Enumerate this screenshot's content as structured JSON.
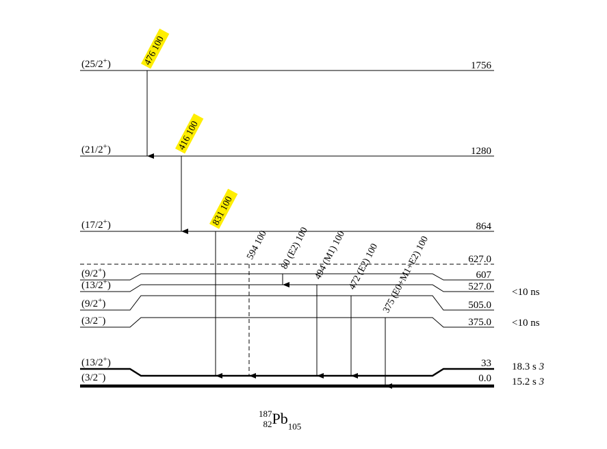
{
  "nucleus": {
    "mass": "187",
    "z": "82",
    "symbol": "Pb",
    "n": "105"
  },
  "levels": [
    {
      "id": "L1756",
      "spin": "(25/2+)",
      "energy": "1756",
      "halflife": "",
      "halflife_unc": ""
    },
    {
      "id": "L1280",
      "spin": "(21/2+)",
      "energy": "1280",
      "halflife": "",
      "halflife_unc": ""
    },
    {
      "id": "L864",
      "spin": "(17/2+)",
      "energy": "864",
      "halflife": "",
      "halflife_unc": ""
    },
    {
      "id": "L627",
      "spin": "",
      "energy": "627.0",
      "halflife": "",
      "halflife_unc": ""
    },
    {
      "id": "L607",
      "spin": "(9/2+)",
      "energy": "607",
      "halflife": "",
      "halflife_unc": ""
    },
    {
      "id": "L527",
      "spin": "(13/2+)",
      "energy": "527.0",
      "halflife": "<10 ns",
      "halflife_unc": ""
    },
    {
      "id": "L505",
      "spin": "(9/2+)",
      "energy": "505.0",
      "halflife": "",
      "halflife_unc": ""
    },
    {
      "id": "L375",
      "spin": "(3/2−)",
      "energy": "375.0",
      "halflife": "<10 ns",
      "halflife_unc": ""
    },
    {
      "id": "L33",
      "spin": "(13/2+)",
      "energy": "33",
      "halflife": "18.3 s",
      "halflife_unc": "3"
    },
    {
      "id": "L0",
      "spin": "(3/2−)",
      "energy": "0.0",
      "halflife": "15.2 s",
      "halflife_unc": "3"
    }
  ],
  "transitions": [
    {
      "id": "g476",
      "label": "476 100",
      "from": "1756",
      "to": "1280",
      "highlight": true,
      "dashed": false
    },
    {
      "id": "g416",
      "label": "416 100",
      "from": "1280",
      "to": "864",
      "highlight": true,
      "dashed": false
    },
    {
      "id": "g831",
      "label": "831 100",
      "from": "864",
      "to": "33",
      "highlight": true,
      "dashed": false
    },
    {
      "id": "g594",
      "label": "594 100",
      "from": "627.0",
      "to": "33",
      "highlight": false,
      "dashed": true
    },
    {
      "id": "g80",
      "label": "80 (E2) 100",
      "from": "607",
      "to": "527.0",
      "highlight": false,
      "dashed": false
    },
    {
      "id": "g494",
      "label": "494 (M1) 100",
      "from": "527.0",
      "to": "33",
      "highlight": false,
      "dashed": false
    },
    {
      "id": "g472",
      "label": "472 (E2) 100",
      "from": "505.0",
      "to": "33",
      "highlight": false,
      "dashed": false
    },
    {
      "id": "g375",
      "label": "375 (E0+M1+E2) 100",
      "from": "375.0",
      "to": "0.0",
      "highlight": false,
      "dashed": false
    }
  ],
  "colors": {
    "highlight": "#ffee00",
    "line": "#000000"
  }
}
